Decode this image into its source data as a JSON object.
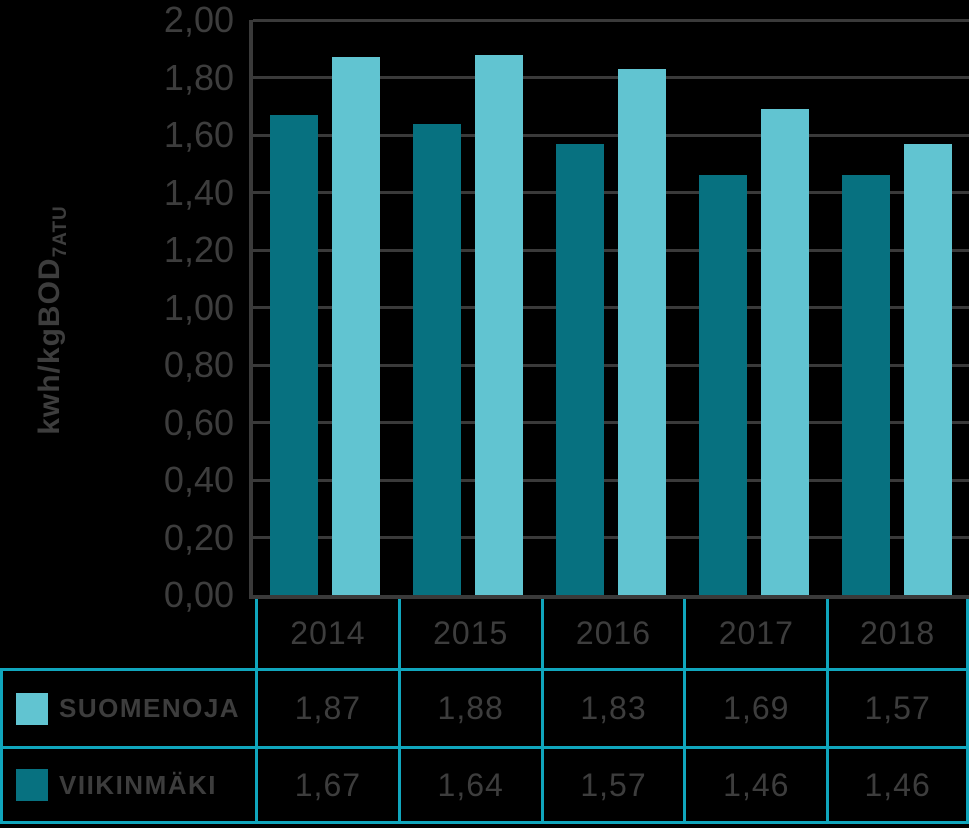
{
  "colors": {
    "background": "#000000",
    "text": "#3d3d3d",
    "grid": "#3a3a3a",
    "table_border": "#10a6bd",
    "suomenoja": "#61c4d1",
    "viikinmaki": "#077180"
  },
  "y_axis": {
    "label_main": "kwh/kgBOD",
    "label_sub": "7ATU",
    "tick_labels": [
      "0,00",
      "0,20",
      "0,40",
      "0,60",
      "0,80",
      "1,00",
      "1,20",
      "1,40",
      "1,60",
      "1,80",
      "2,00"
    ]
  },
  "chart_data": {
    "type": "bar",
    "title": "",
    "xlabel": "",
    "ylabel": "kwh/kgBOD7ATU",
    "categories": [
      "2014",
      "2015",
      "2016",
      "2017",
      "2018"
    ],
    "series": [
      {
        "name": "SUOMENOJA",
        "color_key": "suomenoja",
        "values": [
          1.87,
          1.88,
          1.83,
          1.69,
          1.57
        ],
        "value_labels": [
          "1,87",
          "1,88",
          "1,83",
          "1,69",
          "1,57"
        ]
      },
      {
        "name": "VIIKINMÄKI",
        "color_key": "viikinmaki",
        "values": [
          1.67,
          1.64,
          1.57,
          1.46,
          1.46
        ],
        "value_labels": [
          "1,67",
          "1,64",
          "1,57",
          "1,46",
          "1,46"
        ]
      }
    ],
    "bar_draw_order": [
      "VIIKINMÄKI",
      "SUOMENOJA"
    ],
    "ylim": [
      0,
      2
    ],
    "ytick_step": 0.2,
    "decimal_separator": ",",
    "grid": true,
    "legend_position": "table-rows-bottom-left"
  }
}
